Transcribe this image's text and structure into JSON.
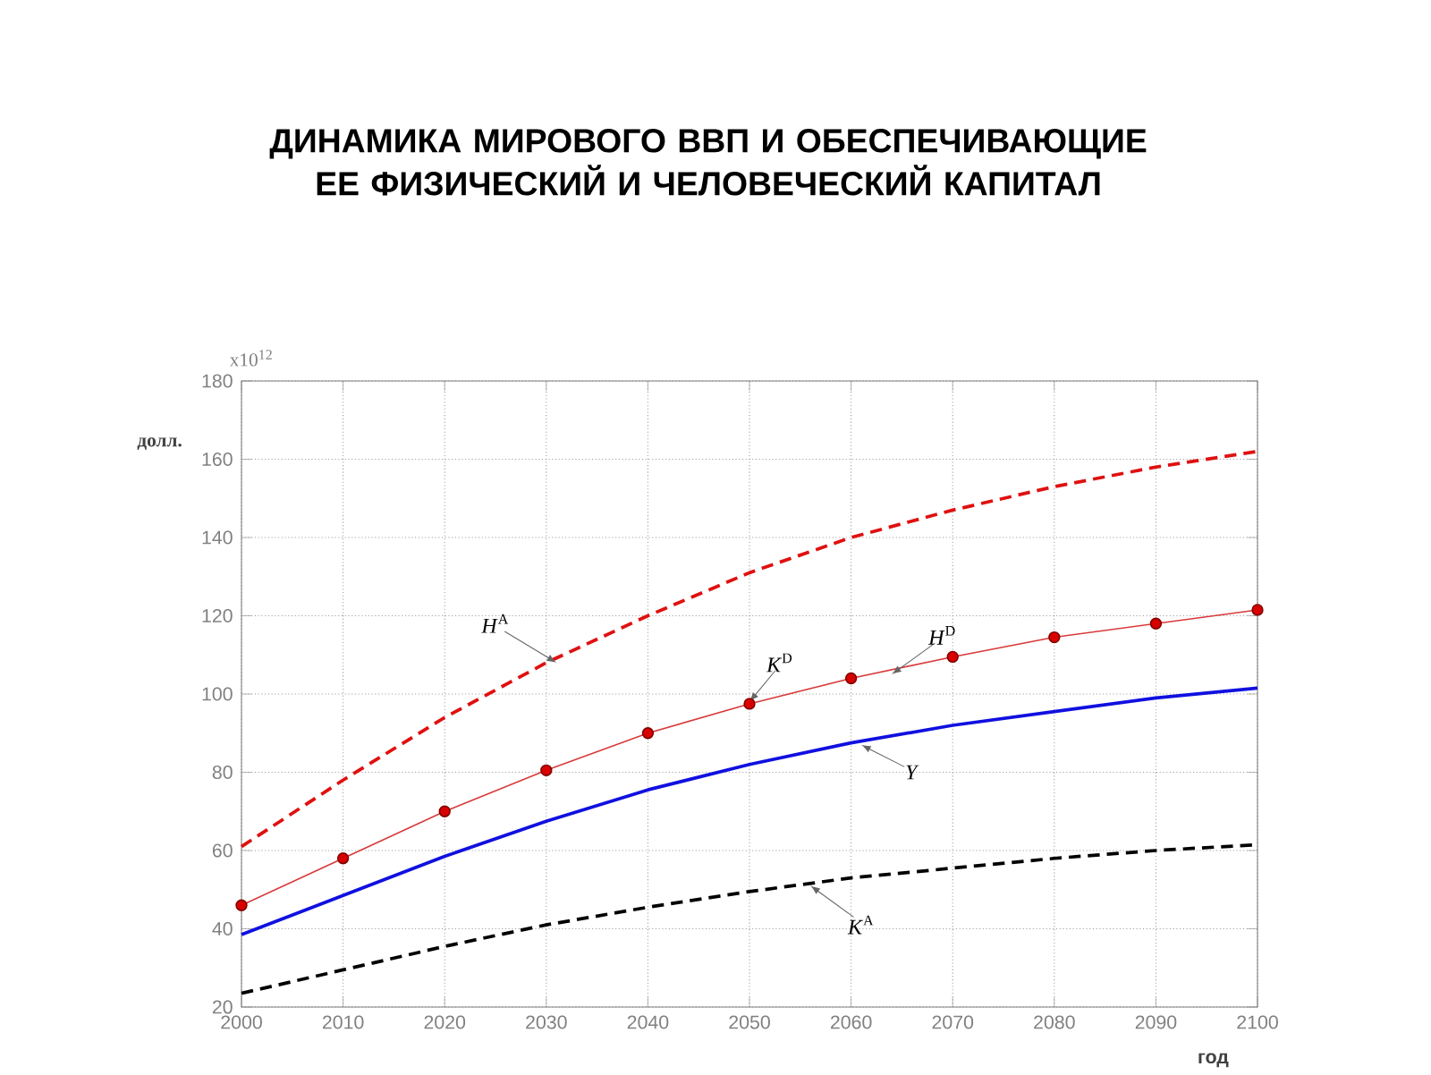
{
  "chart_data": {
    "type": "line",
    "title": "ДИНАМИКА МИРОВОГО ВВП И ОБЕСПЕЧИВАЮЩИЕ ЕЕ ФИЗИЧЕСКИЙ И ЧЕЛОВЕЧЕСКИЙ КАПИТАЛ",
    "xlabel": "год",
    "ylabel": "долл.",
    "x": [
      2000,
      2010,
      2020,
      2030,
      2040,
      2050,
      2060,
      2070,
      2080,
      2090,
      2100
    ],
    "series": [
      {
        "color": "#e01010",
        "line_style": "dashed",
        "marker": "none",
        "values": [
          61,
          78,
          94,
          108,
          120,
          131,
          140,
          147,
          153,
          158,
          162
        ]
      },
      {
        "color": "#d83a3a",
        "line_style": "solid",
        "marker": "circle",
        "values": [
          46,
          58,
          70,
          80.5,
          90,
          97.5,
          104,
          109.5,
          114.5,
          118,
          121.5
        ]
      },
      {
        "color": "#1010e0",
        "line_style": "solid",
        "marker": "none",
        "values": [
          38.5,
          48.5,
          58.5,
          67.5,
          75.5,
          82,
          87.5,
          92,
          95.5,
          99,
          101.5
        ]
      },
      {
        "color": "#000000",
        "line_style": "dashed",
        "marker": "none",
        "values": [
          23.5,
          29.5,
          35.5,
          41,
          45.5,
          49.5,
          53,
          55.5,
          58,
          60,
          61.5
        ]
      }
    ],
    "annotations": [
      "x10$^{12}$",
      {
        "text": "*H*$^{A}$",
        "x": 2031,
        "y": 108
      },
      {
        "text": "*K*$^{D}$",
        "x": 2050,
        "y": 98
      },
      {
        "text": "*H*$^{D}$",
        "x": 2064,
        "y": 105
      },
      {
        "text": "*Y*",
        "x": 2061,
        "y": 87
      },
      {
        "text": "*K*$^{A}$",
        "x": 2056,
        "y": 51
      }
    ],
    "xlim": [
      2000,
      2100
    ],
    "ylim": [
      20,
      180
    ],
    "xticks": [
      2000,
      2010,
      2020,
      2030,
      2040,
      2050,
      2060,
      2070,
      2080,
      2090,
      2100
    ],
    "yticks": [
      20,
      40,
      60,
      80,
      100,
      120,
      140,
      160,
      180
    ],
    "grid": true
  }
}
